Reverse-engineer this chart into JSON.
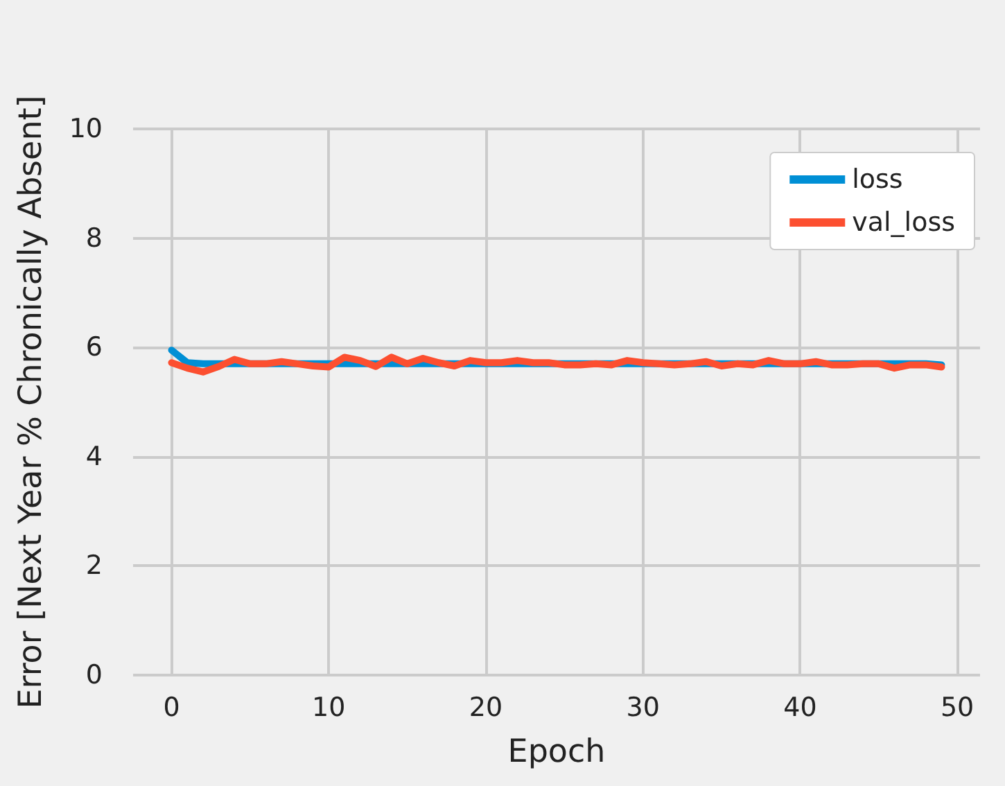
{
  "chart_data": {
    "type": "line",
    "xlabel": "Epoch",
    "ylabel": "Error [Next Year % Chronically Absent]",
    "x": [
      0,
      1,
      2,
      3,
      4,
      5,
      6,
      7,
      8,
      9,
      10,
      11,
      12,
      13,
      14,
      15,
      16,
      17,
      18,
      19,
      20,
      21,
      22,
      23,
      24,
      25,
      26,
      27,
      28,
      29,
      30,
      31,
      32,
      33,
      34,
      35,
      36,
      37,
      38,
      39,
      40,
      41,
      42,
      43,
      44,
      45,
      46,
      47,
      48,
      49
    ],
    "series": [
      {
        "name": "loss",
        "color": "#008fd5",
        "values": [
          5.95,
          5.72,
          5.7,
          5.7,
          5.7,
          5.7,
          5.7,
          5.7,
          5.7,
          5.7,
          5.7,
          5.7,
          5.7,
          5.7,
          5.7,
          5.7,
          5.7,
          5.7,
          5.7,
          5.7,
          5.7,
          5.7,
          5.7,
          5.7,
          5.7,
          5.7,
          5.7,
          5.7,
          5.7,
          5.7,
          5.7,
          5.7,
          5.7,
          5.7,
          5.7,
          5.7,
          5.7,
          5.7,
          5.7,
          5.7,
          5.7,
          5.7,
          5.7,
          5.7,
          5.7,
          5.7,
          5.7,
          5.7,
          5.7,
          5.68
        ]
      },
      {
        "name": "val_loss",
        "color": "#fc4f30",
        "values": [
          5.72,
          5.62,
          5.55,
          5.65,
          5.78,
          5.7,
          5.7,
          5.74,
          5.7,
          5.66,
          5.64,
          5.82,
          5.76,
          5.65,
          5.82,
          5.7,
          5.8,
          5.72,
          5.66,
          5.76,
          5.72,
          5.72,
          5.76,
          5.72,
          5.72,
          5.68,
          5.68,
          5.7,
          5.68,
          5.76,
          5.72,
          5.7,
          5.68,
          5.7,
          5.74,
          5.66,
          5.7,
          5.68,
          5.76,
          5.7,
          5.7,
          5.74,
          5.68,
          5.68,
          5.7,
          5.7,
          5.62,
          5.68,
          5.68,
          5.64
        ]
      }
    ],
    "xlim": [
      -2.45,
      51.45
    ],
    "xticks": [
      0,
      10,
      20,
      30,
      40,
      50
    ],
    "ylim": [
      0,
      10
    ],
    "yticks": [
      0,
      2,
      4,
      6,
      8,
      10
    ],
    "grid": true,
    "legend": "top right",
    "marker": "none",
    "line_style": "solid"
  }
}
